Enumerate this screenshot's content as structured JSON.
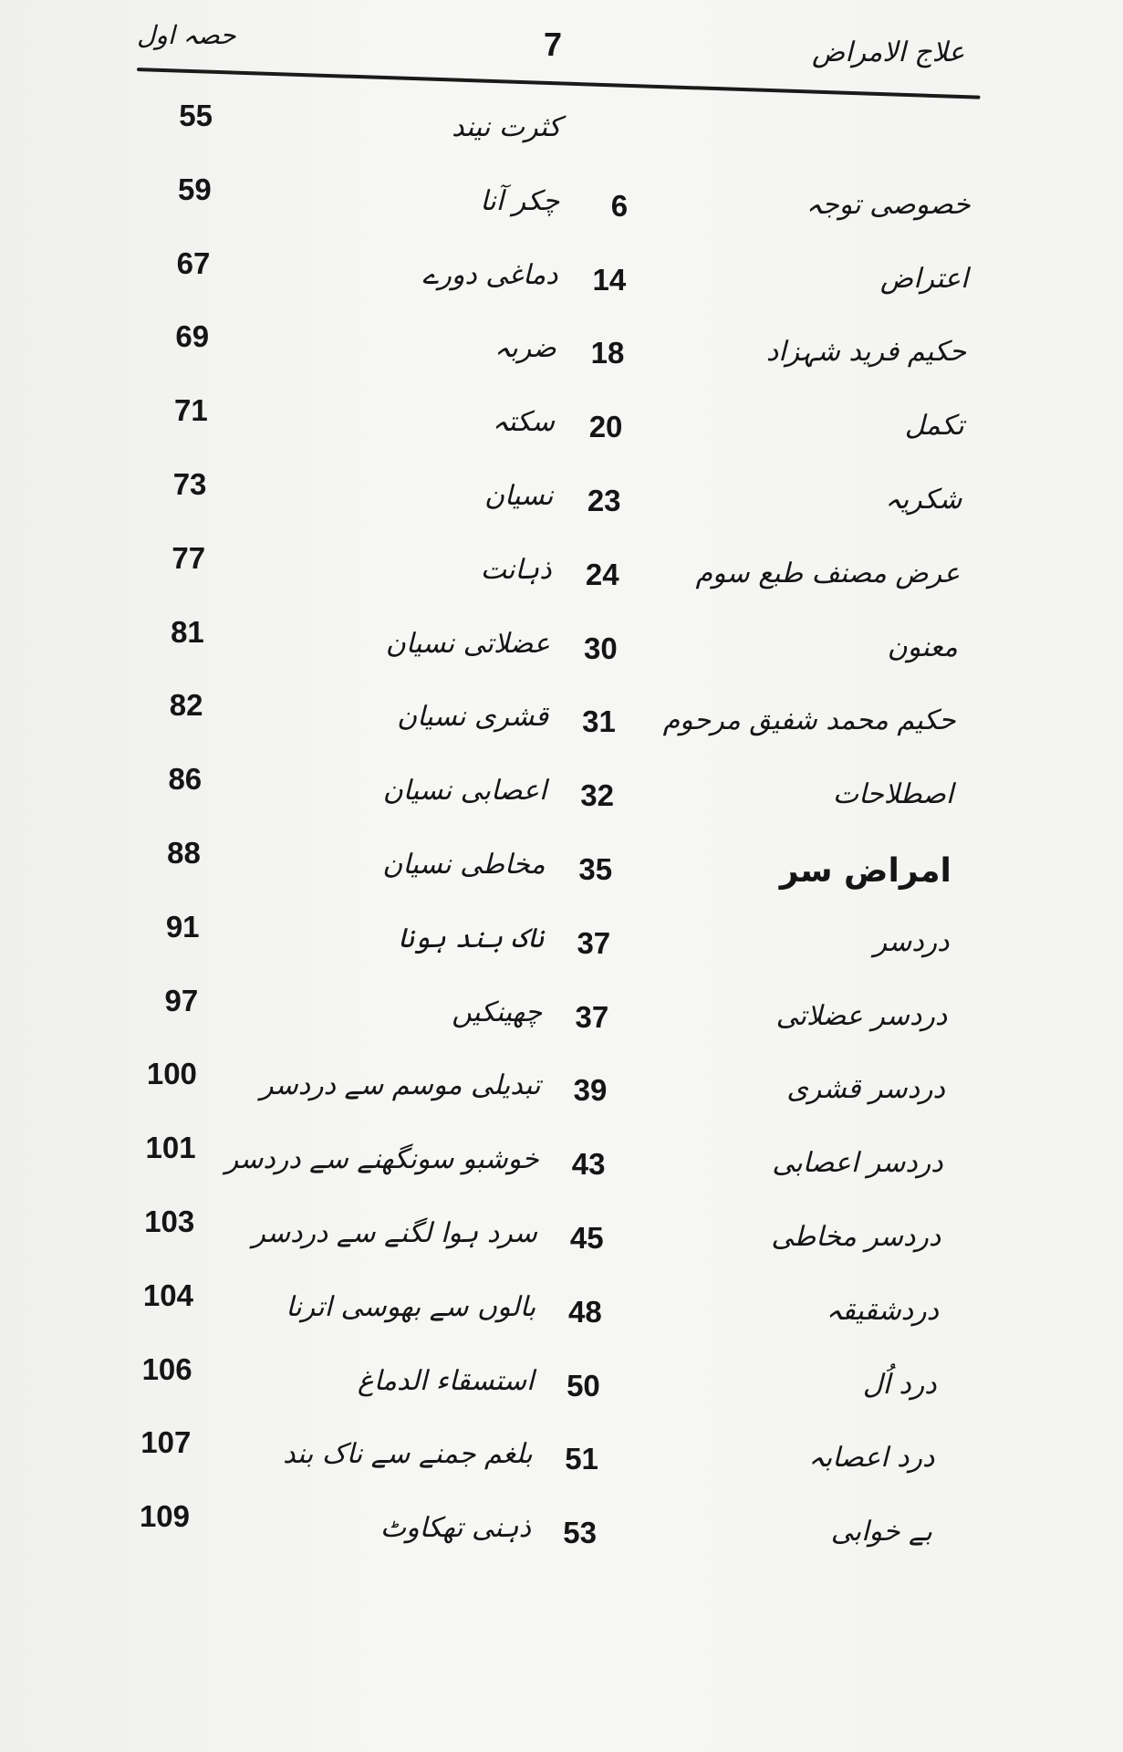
{
  "header": {
    "section": "حصہ اول",
    "page_number": "7",
    "book_title": "علاج الامراض"
  },
  "rows": [
    {
      "left_page": "55",
      "mid_page": "",
      "mid_title": "کثرت نیند",
      "right_title": ""
    },
    {
      "left_page": "59",
      "mid_page": "6",
      "mid_title": "چکر آنا",
      "right_title": "خصوصی توجہ"
    },
    {
      "left_page": "67",
      "mid_page": "14",
      "mid_title": "دماغی دورے",
      "right_title": "اعتراض"
    },
    {
      "left_page": "69",
      "mid_page": "18",
      "mid_title": "ضربہ",
      "right_title": "حکیم فرید شہزاد"
    },
    {
      "left_page": "71",
      "mid_page": "20",
      "mid_title": "سکتہ",
      "right_title": "تکمل"
    },
    {
      "left_page": "73",
      "mid_page": "23",
      "mid_title": "نسیان",
      "right_title": "شکریہ"
    },
    {
      "left_page": "77",
      "mid_page": "24",
      "mid_title": "ذہانت",
      "right_title": "عرض مصنف طبع سوم"
    },
    {
      "left_page": "81",
      "mid_page": "30",
      "mid_title": "عضلاتی نسیان",
      "right_title": "معنون"
    },
    {
      "left_page": "82",
      "mid_page": "31",
      "mid_title": "قشری نسیان",
      "right_title": "حکیم محمد شفیق مرحوم"
    },
    {
      "left_page": "86",
      "mid_page": "32",
      "mid_title": "اعصابی نسیان",
      "right_title": "اصطلاحات"
    },
    {
      "left_page": "88",
      "mid_page": "35",
      "mid_title": "مخاطی نسیان",
      "right_title": "امراض سر",
      "right_bold": true
    },
    {
      "left_page": "91",
      "mid_page": "37",
      "mid_title": "ناک بند ہونا",
      "right_title": "دردسر"
    },
    {
      "left_page": "97",
      "mid_page": "37",
      "mid_title": "چھینکیں",
      "right_title": "دردسر عضلاتی"
    },
    {
      "left_page": "100",
      "mid_page": "39",
      "mid_title": "تبدیلی موسم سے دردسر",
      "right_title": "دردسر قشری"
    },
    {
      "left_page": "101",
      "mid_page": "43",
      "mid_title": "خوشبو سونگھنے سے دردسر",
      "right_title": "دردسر اعصابی"
    },
    {
      "left_page": "103",
      "mid_page": "45",
      "mid_title": "سرد ہوا لگنے سے دردسر",
      "right_title": "دردسر مخاطی"
    },
    {
      "left_page": "104",
      "mid_page": "48",
      "mid_title": "بالوں سے بھوسی اترنا",
      "right_title": "دردشقیقہ"
    },
    {
      "left_page": "106",
      "mid_page": "50",
      "mid_title": "استسقاء الدماغ",
      "right_title": "درد اُل"
    },
    {
      "left_page": "107",
      "mid_page": "51",
      "mid_title": "بلغم جمنے سے ناک بند",
      "right_title": "درد اعصابہ"
    },
    {
      "left_page": "109",
      "mid_page": "53",
      "mid_title": "ذہنی تھکاوٹ",
      "right_title": "بے خوابی"
    }
  ]
}
